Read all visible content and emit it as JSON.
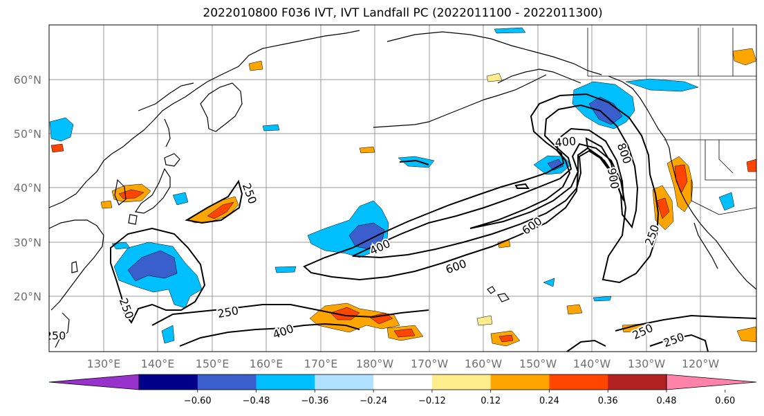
{
  "title": "2022010800 F036 IVT, IVT Landfall PC (2022011100 - 2022011300)",
  "lat_labels": [
    "60°N",
    "50°N",
    "40°N",
    "30°N",
    "20°N"
  ],
  "lon_labels": [
    "130°E",
    "140°E",
    "150°E",
    "160°E",
    "170°E",
    "180°W",
    "170°W",
    "160°W",
    "150°W",
    "140°W",
    "130°W",
    "120°W"
  ],
  "contour_labels": [
    "250",
    "400",
    "600",
    "800",
    "900",
    "400",
    "600",
    "250",
    "250",
    "250",
    "400",
    "250",
    "250",
    "250"
  ],
  "colorbar": {
    "ticks": [
      "−0.60",
      "−0.48",
      "−0.36",
      "−0.24",
      "−0.12",
      "0.12",
      "0.24",
      "0.36",
      "0.48",
      "0.60"
    ],
    "colors": [
      "#9932cc",
      "#00008b",
      "#3a5fcd",
      "#00bfff",
      "#b0e2ff",
      "#ffffff",
      "#ffec8b",
      "#ffa500",
      "#ff4500",
      "#b22222",
      "#ff82ab"
    ]
  },
  "fill_colors": {
    "neg_1": "#b0e2ff",
    "neg_2": "#00bfff",
    "neg_3": "#3a5fcd",
    "neg_4": "#00008b",
    "pos_1": "#ffec8b",
    "pos_2": "#ffa500",
    "pos_3": "#ff4500"
  }
}
